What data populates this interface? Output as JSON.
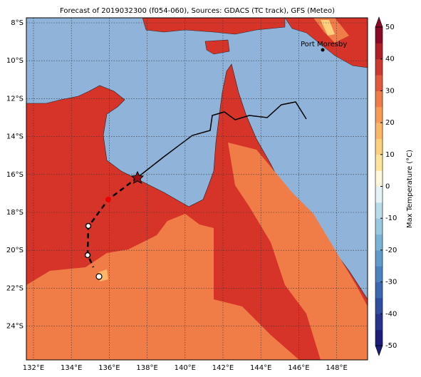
{
  "title": "Forecast of 2019032300 (f054-060), Sources: GDACS (TC track), GFS (Meteo)",
  "place_label": "Port Moresby",
  "lat_labels": [
    "8°S",
    "10°S",
    "12°S",
    "14°S",
    "16°S",
    "18°S",
    "20°S",
    "22°S",
    "24°S"
  ],
  "lon_labels": [
    "132°E",
    "134°E",
    "136°E",
    "138°E",
    "140°E",
    "142°E",
    "144°E",
    "146°E",
    "148°E"
  ],
  "colorbar": {
    "label": "Max Temperature (°C)",
    "lim": [
      -50,
      50
    ],
    "ticks": [
      50,
      40,
      30,
      20,
      10,
      0,
      -10,
      -20,
      -30,
      -40,
      -50
    ],
    "colors": [
      "#1c1c7a",
      "#26338f",
      "#2f4ea3",
      "#3a68b3",
      "#4a83c0",
      "#5f9ccc",
      "#7ab3d8",
      "#98c8e2",
      "#b8dcec",
      "#e4f3f5",
      "#fff8dc",
      "#fee59a",
      "#fdd07d",
      "#fdb567",
      "#f99a55",
      "#f07c48",
      "#e15b3b",
      "#cc3a2e",
      "#b01f26",
      "#8c0a26"
    ]
  }
}
